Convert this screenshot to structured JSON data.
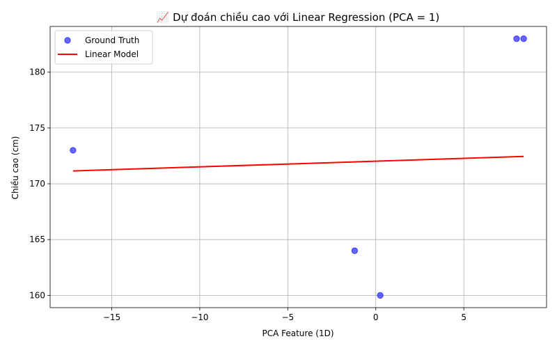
{
  "chart_data": {
    "type": "scatter",
    "title": "📈 Dự đoán chiều cao với Linear Regression (PCA = 1)",
    "xlabel": "PCA Feature (1D)",
    "ylabel": "Chiều cao (cm)",
    "xlim": [
      -18.5,
      9.7
    ],
    "ylim": [
      158.9,
      184.1
    ],
    "xticks": [
      -15,
      -10,
      -5,
      0,
      5
    ],
    "xtick_labels": [
      "−15",
      "−10",
      "−5",
      "0",
      "5"
    ],
    "yticks": [
      160,
      165,
      170,
      175,
      180
    ],
    "ytick_labels": [
      "160",
      "165",
      "170",
      "175",
      "180"
    ],
    "grid": true,
    "legend_position": "top-left",
    "series": [
      {
        "name": "Ground Truth",
        "kind": "scatter",
        "color": "#0000ff",
        "points": [
          {
            "x": -17.2,
            "y": 173
          },
          {
            "x": -1.2,
            "y": 164
          },
          {
            "x": 0.25,
            "y": 160
          },
          {
            "x": 8.0,
            "y": 183
          },
          {
            "x": 8.4,
            "y": 183
          }
        ]
      },
      {
        "name": "Linear Model",
        "kind": "line",
        "color": "#ff0000",
        "points": [
          {
            "x": -17.2,
            "y": 171.15
          },
          {
            "x": 8.4,
            "y": 172.45
          }
        ]
      }
    ]
  }
}
